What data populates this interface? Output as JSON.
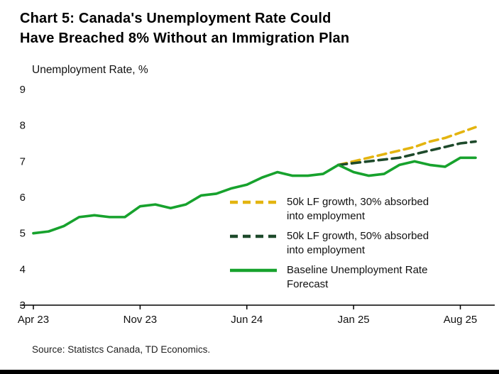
{
  "header": {
    "title": "Chart 5: Canada's Unemployment Rate Could\nHave Breached 8% Without an Immigration Plan"
  },
  "footer": {
    "source": "Source: Statistcs Canada, TD Economics."
  },
  "chart_data": {
    "type": "line",
    "title": "Chart 5: Canada's Unemployment Rate Could Have Breached 8% Without an Immigration Plan",
    "ylabel": "Unemployment Rate, %",
    "xlabel": "",
    "ylim": [
      3,
      9
    ],
    "yticks": [
      3,
      4,
      5,
      6,
      7,
      8,
      9
    ],
    "grid": false,
    "legend_position": "inside-right",
    "x": [
      "Apr 23",
      "May 23",
      "Jun 23",
      "Jul 23",
      "Aug 23",
      "Sep 23",
      "Oct 23",
      "Nov 23",
      "Dec 23",
      "Jan 24",
      "Feb 24",
      "Mar 24",
      "Apr 24",
      "May 24",
      "Jun 24",
      "Jul 24",
      "Aug 24",
      "Sep 24",
      "Oct 24",
      "Nov 24",
      "Dec 24",
      "Jan 25",
      "Feb 25",
      "Mar 25",
      "Apr 25",
      "May 25",
      "Jun 25",
      "Jul 25",
      "Aug 25",
      "Sep 25"
    ],
    "xticks": [
      {
        "label": "Apr 23",
        "index": 0
      },
      {
        "label": "Nov 23",
        "index": 7
      },
      {
        "label": "Jun 24",
        "index": 14
      },
      {
        "label": "Jan 25",
        "index": 21
      },
      {
        "label": "Aug 25",
        "index": 28
      }
    ],
    "series": [
      {
        "name": "50k LF growth, 30% absorbed into employment",
        "color": "#E3B40F",
        "style": "dashed",
        "values": [
          null,
          null,
          null,
          null,
          null,
          null,
          null,
          null,
          null,
          null,
          null,
          null,
          null,
          null,
          null,
          null,
          null,
          null,
          null,
          null,
          6.9,
          7.0,
          7.1,
          7.2,
          7.3,
          7.4,
          7.55,
          7.65,
          7.8,
          7.95
        ]
      },
      {
        "name": "50k LF growth, 50% absorbed into employment",
        "color": "#1E4A2B",
        "style": "dashed",
        "values": [
          null,
          null,
          null,
          null,
          null,
          null,
          null,
          null,
          null,
          null,
          null,
          null,
          null,
          null,
          null,
          null,
          null,
          null,
          null,
          null,
          6.9,
          6.95,
          7.0,
          7.05,
          7.1,
          7.2,
          7.3,
          7.4,
          7.5,
          7.55
        ]
      },
      {
        "name": "Baseline Unemployment Rate Forecast",
        "color": "#17A22D",
        "style": "solid",
        "values": [
          5.0,
          5.05,
          5.2,
          5.45,
          5.5,
          5.45,
          5.45,
          5.75,
          5.8,
          5.7,
          5.8,
          6.05,
          6.1,
          6.25,
          6.35,
          6.55,
          6.7,
          6.6,
          6.6,
          6.65,
          6.9,
          6.7,
          6.6,
          6.65,
          6.9,
          7.0,
          6.9,
          6.85,
          7.1,
          7.1
        ]
      }
    ]
  }
}
